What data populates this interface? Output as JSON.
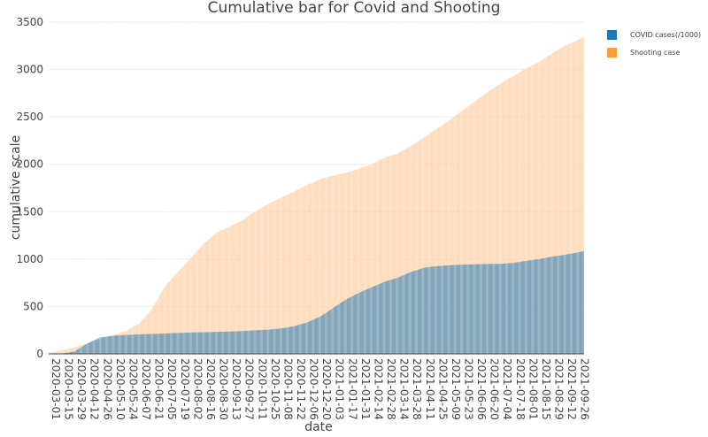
{
  "chart_data": {
    "type": "area",
    "title": "Cumulative bar for Covid and Shooting",
    "xlabel": "date",
    "ylabel": "cumulative scale",
    "ylim": [
      0,
      3500
    ],
    "yticks": [
      0,
      500,
      1000,
      1500,
      2000,
      2500,
      3000,
      3500
    ],
    "x_tick_labels": [
      "2020-03-01",
      "2020-03-15",
      "2020-03-29",
      "2020-04-12",
      "2020-04-26",
      "2020-05-10",
      "2020-05-24",
      "2020-06-07",
      "2020-06-21",
      "2020-07-05",
      "2020-07-19",
      "2020-08-02",
      "2020-08-16",
      "2020-08-30",
      "2020-09-13",
      "2020-09-27",
      "2020-10-11",
      "2020-10-25",
      "2020-11-08",
      "2020-11-22",
      "2020-12-06",
      "2020-12-20",
      "2021-01-03",
      "2021-01-17",
      "2021-01-31",
      "2021-02-14",
      "2021-02-28",
      "2021-03-14",
      "2021-03-28",
      "2021-04-11",
      "2021-04-25",
      "2021-05-09",
      "2021-05-23",
      "2021-06-06",
      "2021-06-20",
      "2021-07-04",
      "2021-07-18",
      "2021-08-01",
      "2021-08-15",
      "2021-08-29",
      "2021-09-12",
      "2021-09-26"
    ],
    "x": [
      "2020-03-01",
      "2020-03-15",
      "2020-03-29",
      "2020-04-12",
      "2020-04-26",
      "2020-05-10",
      "2020-05-24",
      "2020-06-07",
      "2020-06-21",
      "2020-07-05",
      "2020-07-19",
      "2020-08-02",
      "2020-08-16",
      "2020-08-30",
      "2020-09-13",
      "2020-09-27",
      "2020-10-11",
      "2020-10-25",
      "2020-11-08",
      "2020-11-22",
      "2020-12-06",
      "2020-12-20",
      "2021-01-03",
      "2021-01-17",
      "2021-01-31",
      "2021-02-14",
      "2021-02-28",
      "2021-03-14",
      "2021-03-28",
      "2021-04-11",
      "2021-04-25",
      "2021-05-09",
      "2021-05-23",
      "2021-06-06",
      "2021-06-20",
      "2021-07-04",
      "2021-07-18",
      "2021-08-01",
      "2021-08-15",
      "2021-08-29",
      "2021-09-12",
      "2021-09-26",
      "2021-10-03"
    ],
    "series": [
      {
        "name": "COVID cases(/1000)",
        "color": "#1f77b4",
        "values": [
          0,
          2,
          25,
          110,
          175,
          190,
          200,
          205,
          210,
          215,
          220,
          225,
          228,
          232,
          236,
          240,
          248,
          255,
          268,
          290,
          330,
          390,
          480,
          570,
          640,
          700,
          760,
          800,
          860,
          905,
          925,
          935,
          940,
          945,
          948,
          950,
          960,
          980,
          1000,
          1025,
          1045,
          1070,
          1085
        ]
      },
      {
        "name": "Shooting case",
        "color": "#ff9f3a",
        "values": [
          10,
          35,
          70,
          110,
          150,
          200,
          240,
          320,
          470,
          710,
          860,
          1010,
          1160,
          1280,
          1340,
          1410,
          1500,
          1580,
          1650,
          1710,
          1780,
          1840,
          1880,
          1910,
          1950,
          2000,
          2070,
          2110,
          2190,
          2270,
          2370,
          2460,
          2560,
          2660,
          2760,
          2850,
          2930,
          3010,
          3080,
          3170,
          3250,
          3310,
          3340
        ]
      }
    ],
    "legend_placement": "top-right",
    "grid": true
  }
}
